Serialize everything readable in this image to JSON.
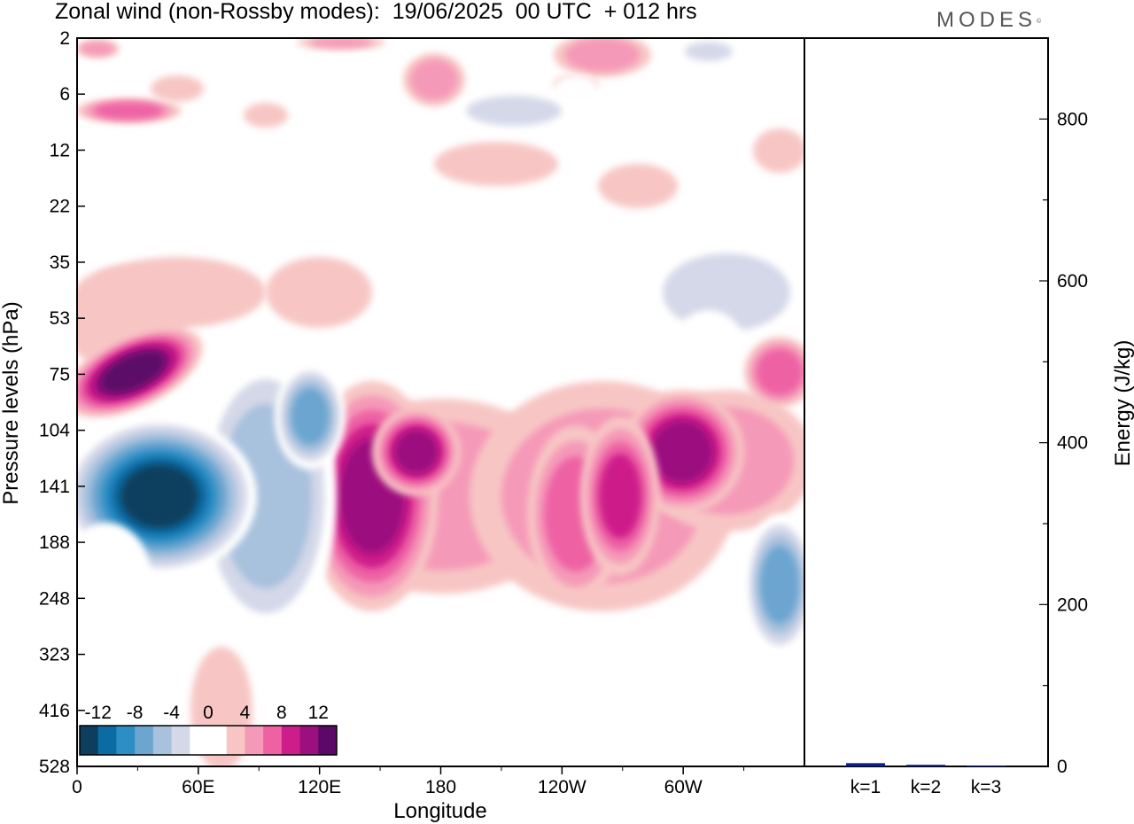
{
  "header": {
    "title": "Zonal wind (non-Rossby modes):  19/06/2025  00 UTC  + 012 hrs",
    "logo": "MODES",
    "logo_mark": "©"
  },
  "chart_data": [
    {
      "type": "heatmap",
      "xlabel": "Longitude",
      "ylabel": "Pressure levels (hPa)",
      "x_ticks": [
        "0",
        "60E",
        "120E",
        "180",
        "120W",
        "60W"
      ],
      "y_ticks": [
        "2",
        "6",
        "12",
        "22",
        "35",
        "53",
        "75",
        "104",
        "141",
        "188",
        "248",
        "323",
        "416",
        "528"
      ],
      "y_reversed": true,
      "colorbar": {
        "labels": [
          "-12",
          "-8",
          "-4",
          "0",
          "4",
          "8",
          "12"
        ],
        "colors": [
          "#0c3f5e",
          "#0b6ba3",
          "#2d8ec5",
          "#6ca5d0",
          "#a8c1dd",
          "#d4d8e8",
          "#ffffff",
          "#ffffff",
          "#f7c6c4",
          "#f599b8",
          "#ee62a4",
          "#cd1d8a",
          "#9c0f7f",
          "#5c0868"
        ]
      },
      "features": [
        {
          "lon": 35,
          "level": "141",
          "value": -14
        },
        {
          "lon": 20,
          "level": "141",
          "value": -13
        },
        {
          "lon": 120,
          "level": "104",
          "value": -8
        },
        {
          "lon": 355,
          "level": "188",
          "value": -9
        },
        {
          "lon": 30,
          "level": "75",
          "value": 13
        },
        {
          "lon": 140,
          "level": "141",
          "value": 11
        },
        {
          "lon": 170,
          "level": "141",
          "value": 10
        },
        {
          "lon": 305,
          "level": "141",
          "value": 11
        },
        {
          "lon": 350,
          "level": "104",
          "value": 9
        },
        {
          "lon": 240,
          "level": "141",
          "value": 8
        },
        {
          "lon": 290,
          "level": "22",
          "value": 3
        },
        {
          "lon": 330,
          "level": "53",
          "value": -5
        }
      ]
    },
    {
      "type": "bar",
      "categories": [
        "k=1",
        "k=2",
        "k=3"
      ],
      "values": [
        4,
        2,
        1
      ],
      "ylabel": "Energy (J/kg)",
      "ylim": [
        0,
        900
      ],
      "y_ticks": [
        0,
        200,
        400,
        600,
        800
      ],
      "bar_color": "#0a1e8c"
    }
  ]
}
